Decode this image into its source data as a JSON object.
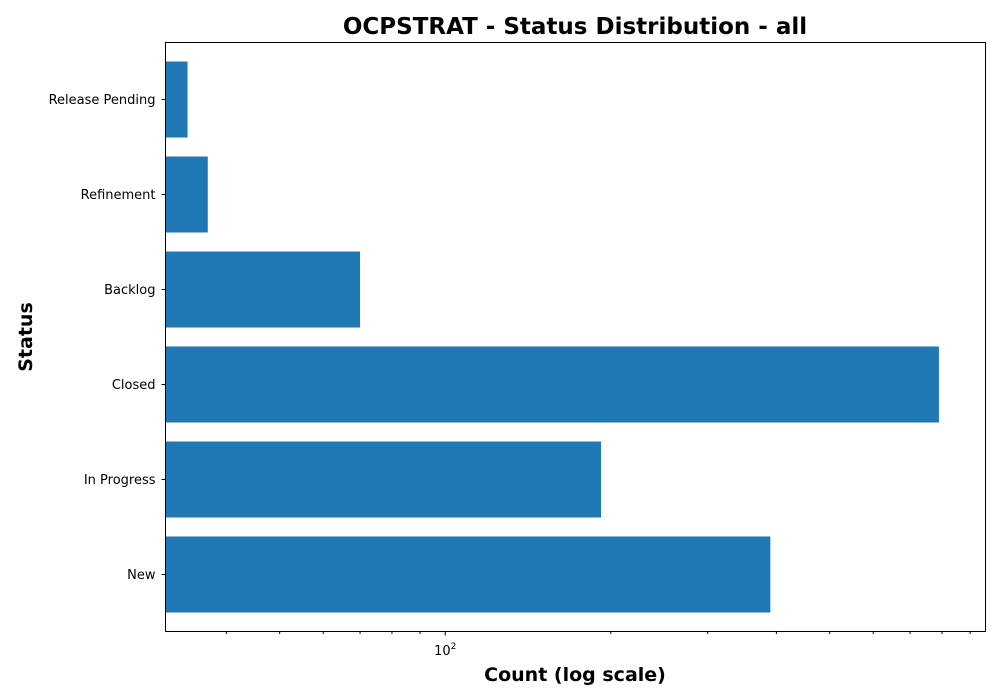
{
  "chart_data": {
    "type": "bar",
    "orientation": "horizontal",
    "title": "OCPSTRAT - Status Distribution - all",
    "xlabel": "Count (log scale)",
    "ylabel": "Status",
    "x_scale": "log",
    "xlim": [
      31,
      960
    ],
    "x_major_tick_label": {
      "base": "10",
      "exponent": "2",
      "value": 100
    },
    "categories": [
      "New",
      "In Progress",
      "Closed",
      "Backlog",
      "Refinement",
      "Release Pending"
    ],
    "values": [
      390,
      192,
      790,
      70,
      37,
      34
    ],
    "bar_color": "#1f77b4",
    "grid": false,
    "legend": "none"
  }
}
